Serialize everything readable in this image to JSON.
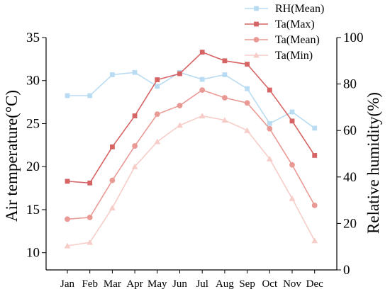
{
  "chart_data": {
    "type": "line",
    "categories": [
      "Jan",
      "Feb",
      "Mar",
      "Apr",
      "May",
      "Jun",
      "Jul",
      "Aug",
      "Sep",
      "Oct",
      "Nov",
      "Dec"
    ],
    "left_axis": {
      "label": "Air temperature(°C)",
      "ylim": [
        8,
        35
      ],
      "ticks": [
        10,
        15,
        20,
        25,
        30,
        35
      ]
    },
    "right_axis": {
      "label": "Relative humidity(%)",
      "ylim": [
        0,
        100
      ],
      "ticks": [
        0,
        20,
        40,
        60,
        80,
        100
      ]
    },
    "series": [
      {
        "name": "RH(Mean)",
        "axis": "right",
        "marker": "square",
        "color": "#b9dcf2",
        "values": [
          75,
          75,
          84,
          85,
          79,
          85,
          82,
          84,
          78,
          63,
          68,
          61
        ]
      },
      {
        "name": "Ta(Max)",
        "axis": "left",
        "marker": "square",
        "color": "#d66464",
        "values": [
          18.3,
          18.1,
          22.3,
          25.9,
          30.1,
          30.8,
          33.3,
          32.3,
          31.9,
          28.9,
          25.3,
          21.3
        ]
      },
      {
        "name": "Ta(Mean)",
        "axis": "left",
        "marker": "circle",
        "color": "#ea9a94",
        "values": [
          13.9,
          14.1,
          18.4,
          22.4,
          26.1,
          27.1,
          28.9,
          28.0,
          27.4,
          24.4,
          20.2,
          15.5
        ]
      },
      {
        "name": "Ta(Min)",
        "axis": "left",
        "marker": "triangle",
        "color": "#f6cdc8",
        "values": [
          10.8,
          11.2,
          15.2,
          20.0,
          22.9,
          24.8,
          25.9,
          25.4,
          24.2,
          20.9,
          16.3,
          11.4
        ]
      }
    ],
    "legend_position": "top-right"
  }
}
